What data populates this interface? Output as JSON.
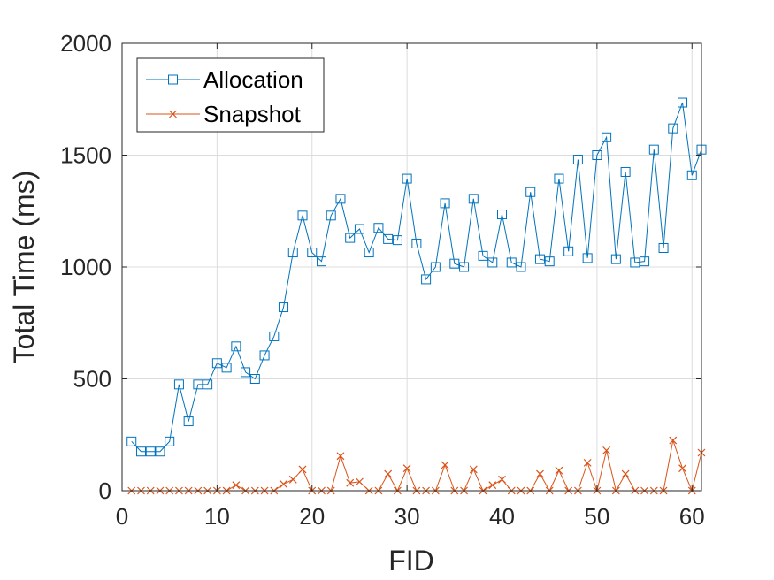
{
  "chart_data": {
    "type": "line",
    "title": "",
    "xlabel": "FID",
    "ylabel": "Total Time (ms)",
    "xlim": [
      0,
      61
    ],
    "ylim": [
      0,
      2000
    ],
    "xticks": [
      0,
      10,
      20,
      30,
      40,
      50,
      60
    ],
    "yticks": [
      0,
      500,
      1000,
      1500,
      2000
    ],
    "grid": true,
    "legend_position": "top-left",
    "x": [
      1,
      2,
      3,
      4,
      5,
      6,
      7,
      8,
      9,
      10,
      11,
      12,
      13,
      14,
      15,
      16,
      17,
      18,
      19,
      20,
      21,
      22,
      23,
      24,
      25,
      26,
      27,
      28,
      29,
      30,
      31,
      32,
      33,
      34,
      35,
      36,
      37,
      38,
      39,
      40,
      41,
      42,
      43,
      44,
      45,
      46,
      47,
      48,
      49,
      50,
      51,
      52,
      53,
      54,
      55,
      56,
      57,
      58,
      59,
      60,
      61
    ],
    "series": [
      {
        "name": "Allocation",
        "color": "#0072BD",
        "marker": "square",
        "values": [
          220,
          175,
          175,
          175,
          220,
          475,
          310,
          475,
          475,
          570,
          550,
          645,
          530,
          500,
          605,
          690,
          820,
          1065,
          1230,
          1065,
          1025,
          1230,
          1305,
          1130,
          1170,
          1065,
          1175,
          1125,
          1120,
          1395,
          1105,
          945,
          1000,
          1285,
          1015,
          1000,
          1305,
          1050,
          1020,
          1235,
          1020,
          1000,
          1335,
          1035,
          1025,
          1395,
          1070,
          1480,
          1040,
          1500,
          1580,
          1035,
          1425,
          1020,
          1025,
          1525,
          1085,
          1620,
          1735,
          1410,
          1525
        ]
      },
      {
        "name": "Snapshot",
        "color": "#D95319",
        "marker": "x",
        "values": [
          0,
          0,
          0,
          0,
          0,
          0,
          0,
          0,
          0,
          0,
          0,
          25,
          0,
          0,
          0,
          0,
          30,
          50,
          95,
          0,
          0,
          0,
          155,
          35,
          40,
          0,
          0,
          75,
          0,
          100,
          0,
          0,
          0,
          115,
          0,
          0,
          95,
          0,
          25,
          50,
          0,
          0,
          0,
          75,
          0,
          90,
          0,
          0,
          125,
          0,
          180,
          0,
          75,
          0,
          0,
          0,
          0,
          225,
          100,
          0,
          170
        ]
      }
    ]
  }
}
